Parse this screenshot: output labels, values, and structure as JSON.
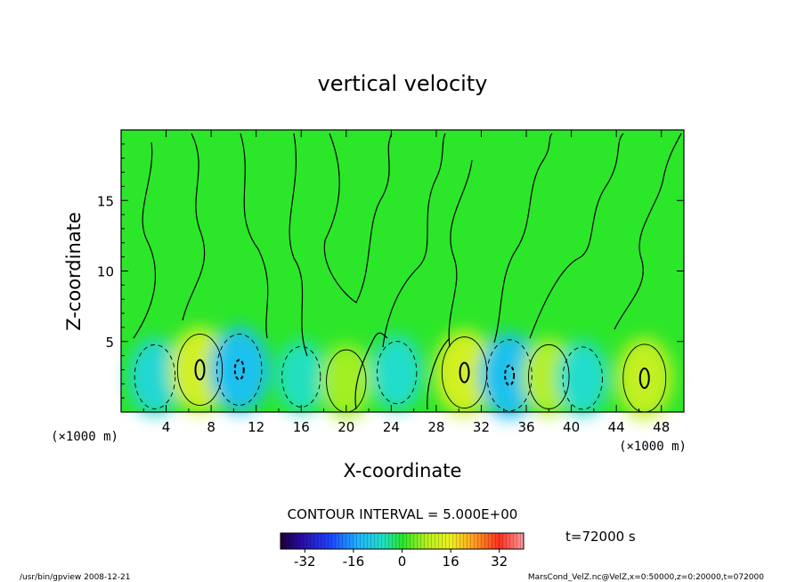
{
  "chart_data": {
    "type": "heatmap",
    "title": "vertical velocity",
    "xlabel": "X-coordinate",
    "ylabel": "Z-coordinate",
    "x_unit": "(×1000 m)",
    "y_unit": "(×1000 m)",
    "x_ticks": [
      4,
      8,
      12,
      16,
      20,
      24,
      28,
      32,
      36,
      40,
      44,
      48
    ],
    "y_ticks": [
      5,
      10,
      15
    ],
    "xlim": [
      0,
      50
    ],
    "ylim": [
      0,
      20
    ],
    "contour_interval_label": "CONTOUR INTERVAL = 5.000E+00",
    "time_label": "t=72000 s",
    "colorbar": {
      "min": -40,
      "max": 40,
      "ticks": [
        -32,
        -16,
        0,
        16,
        32
      ]
    },
    "cells": [
      {
        "x": 3,
        "z": 2.5,
        "w": -8
      },
      {
        "x": 7,
        "z": 3,
        "w": 12
      },
      {
        "x": 10.5,
        "z": 3,
        "w": -12
      },
      {
        "x": 16,
        "z": 2.5,
        "w": -6
      },
      {
        "x": 20,
        "z": 2.2,
        "w": 7
      },
      {
        "x": 24.5,
        "z": 2.8,
        "w": -7
      },
      {
        "x": 30.5,
        "z": 2.8,
        "w": 12
      },
      {
        "x": 34.5,
        "z": 2.6,
        "w": -12
      },
      {
        "x": 38,
        "z": 2.5,
        "w": 8
      },
      {
        "x": 41,
        "z": 2.4,
        "w": -7
      },
      {
        "x": 46.5,
        "z": 2.4,
        "w": 10
      }
    ],
    "colors": {
      "background_field": "#2ce62a"
    }
  },
  "footer": {
    "left": "/usr/bin/gpview  2008-12-21",
    "right": "MarsCond_VelZ.nc@VelZ,x=0:50000,z=0:20000,t=072000"
  }
}
